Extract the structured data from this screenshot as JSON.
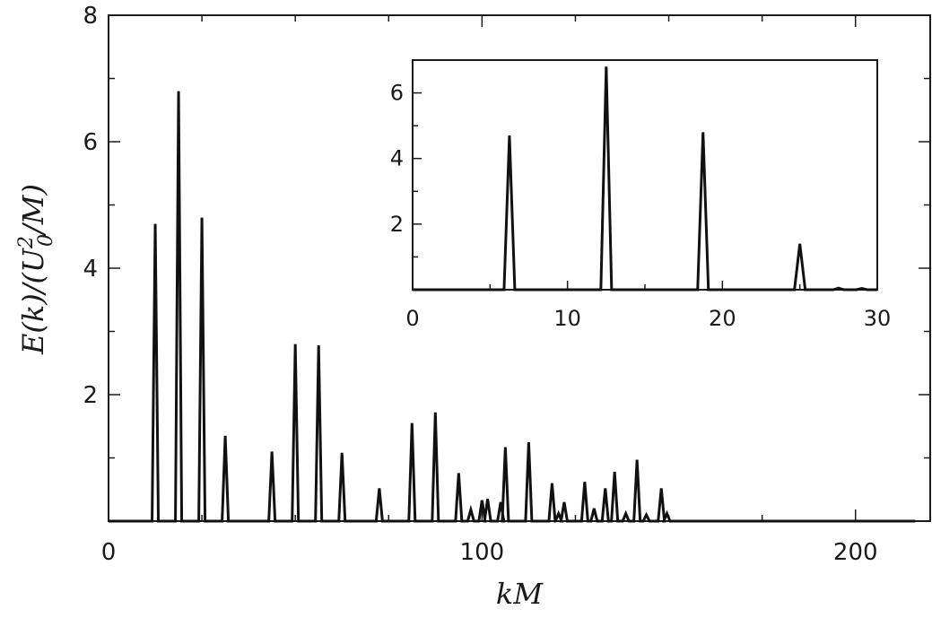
{
  "chart_data": [
    {
      "type": "line",
      "xlabel": "kM",
      "ylabel": "E(k)/(U_0^2/M)",
      "xlim": [
        0,
        220
      ],
      "ylim": [
        0,
        8
      ],
      "x_ticks": [
        0,
        100,
        200
      ],
      "y_ticks": [
        2,
        4,
        6,
        8
      ],
      "x_minor_step": 25,
      "y_minor_step": 1,
      "grid": false,
      "peaks": [
        {
          "x": 12.5,
          "y": 4.7
        },
        {
          "x": 18.75,
          "y": 6.8
        },
        {
          "x": 25,
          "y": 4.8
        },
        {
          "x": 31.25,
          "y": 1.35
        },
        {
          "x": 43.75,
          "y": 1.1
        },
        {
          "x": 50,
          "y": 2.8
        },
        {
          "x": 56.25,
          "y": 2.78
        },
        {
          "x": 62.5,
          "y": 1.08
        },
        {
          "x": 72.5,
          "y": 0.52
        },
        {
          "x": 81.25,
          "y": 1.55
        },
        {
          "x": 87.5,
          "y": 1.72
        },
        {
          "x": 93.75,
          "y": 0.76
        },
        {
          "x": 97,
          "y": 0.18
        },
        {
          "x": 100,
          "y": 0.33
        },
        {
          "x": 101.5,
          "y": 0.35
        },
        {
          "x": 105,
          "y": 0.3
        },
        {
          "x": 106.25,
          "y": 1.17
        },
        {
          "x": 112.5,
          "y": 1.25
        },
        {
          "x": 118.75,
          "y": 0.6
        },
        {
          "x": 120.5,
          "y": 0.12
        },
        {
          "x": 122,
          "y": 0.3
        },
        {
          "x": 127.5,
          "y": 0.62
        },
        {
          "x": 130,
          "y": 0.2
        },
        {
          "x": 133,
          "y": 0.52
        },
        {
          "x": 135.5,
          "y": 0.78
        },
        {
          "x": 138.5,
          "y": 0.12
        },
        {
          "x": 141.5,
          "y": 0.97
        },
        {
          "x": 144,
          "y": 0.1
        },
        {
          "x": 148,
          "y": 0.52
        },
        {
          "x": 149.5,
          "y": 0.12
        }
      ]
    },
    {
      "type": "line",
      "inset": true,
      "xlim": [
        0,
        30
      ],
      "ylim": [
        0,
        7
      ],
      "x_ticks": [
        0,
        10,
        20,
        30
      ],
      "y_ticks": [
        2,
        4,
        6
      ],
      "x_minor_step": 5,
      "y_minor_step": 1,
      "grid": false,
      "peaks": [
        {
          "x": 6.25,
          "y": 4.7
        },
        {
          "x": 12.5,
          "y": 6.8
        },
        {
          "x": 18.75,
          "y": 4.8
        },
        {
          "x": 25,
          "y": 1.4
        },
        {
          "x": 27.5,
          "y": 0.05
        },
        {
          "x": 29,
          "y": 0.04
        }
      ]
    }
  ]
}
